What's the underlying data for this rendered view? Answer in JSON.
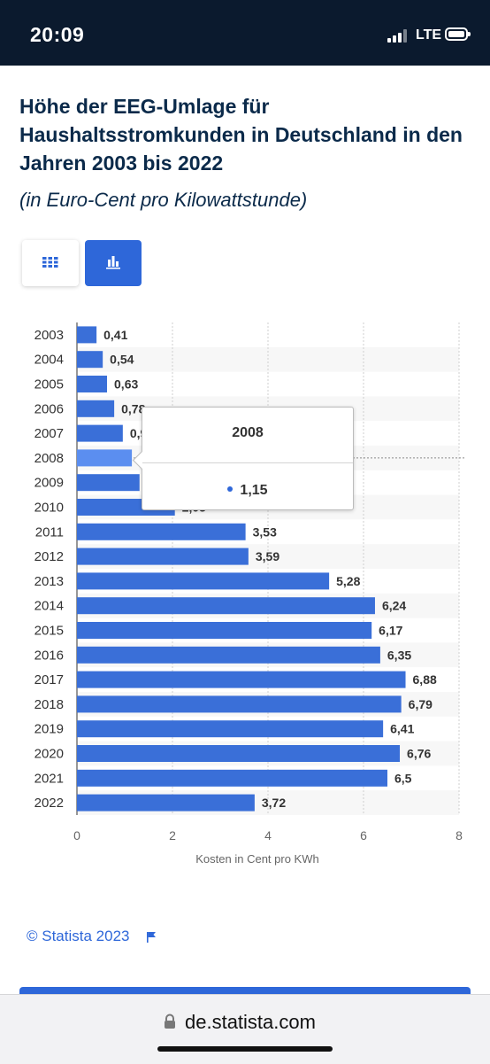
{
  "status_bar": {
    "time": "20:09",
    "network": "LTE"
  },
  "title": "Höhe der EEG-Umlage für Haushaltsstromkunden in Deutschland in den Jahren 2003 bis 2022",
  "subtitle": "(in Euro-Cent pro Kilowattstunde)",
  "view_toggle": {
    "table_icon": "grid-icon",
    "chart_icon": "bar-chart-icon",
    "active": "chart"
  },
  "chart_data": {
    "type": "bar",
    "orientation": "horizontal",
    "categories": [
      "2003",
      "2004",
      "2005",
      "2006",
      "2007",
      "2008",
      "2009",
      "2010",
      "2011",
      "2012",
      "2013",
      "2014",
      "2015",
      "2016",
      "2017",
      "2018",
      "2019",
      "2020",
      "2021",
      "2022"
    ],
    "values": [
      0.41,
      0.54,
      0.63,
      0.78,
      0.96,
      1.15,
      1.31,
      2.05,
      3.53,
      3.59,
      5.28,
      6.24,
      6.17,
      6.35,
      6.88,
      6.79,
      6.41,
      6.76,
      6.5,
      3.72
    ],
    "value_labels": [
      "0,41",
      "0,54",
      "0,63",
      "0,78",
      "0,96",
      "1,15",
      "1,31",
      "2,05",
      "3,53",
      "3,59",
      "5,28",
      "6,24",
      "6,17",
      "6,35",
      "6,88",
      "6,79",
      "6,41",
      "6,76",
      "6,5",
      "3,72"
    ],
    "xlabel": "Kosten in Cent pro KWh",
    "xlim": [
      0,
      8
    ],
    "xticks": [
      0,
      2,
      4,
      6,
      8
    ],
    "grid": true,
    "bar_color": "#3a6fd8",
    "highlight_color": "#5b8ef0",
    "highlighted_index": 5
  },
  "tooltip": {
    "year": "2008",
    "value": "1,15"
  },
  "footer": {
    "copyright": "© Statista 2023",
    "flag_icon": "flag-icon"
  },
  "browser": {
    "url": "de.statista.com",
    "lock_icon": "lock-icon"
  }
}
